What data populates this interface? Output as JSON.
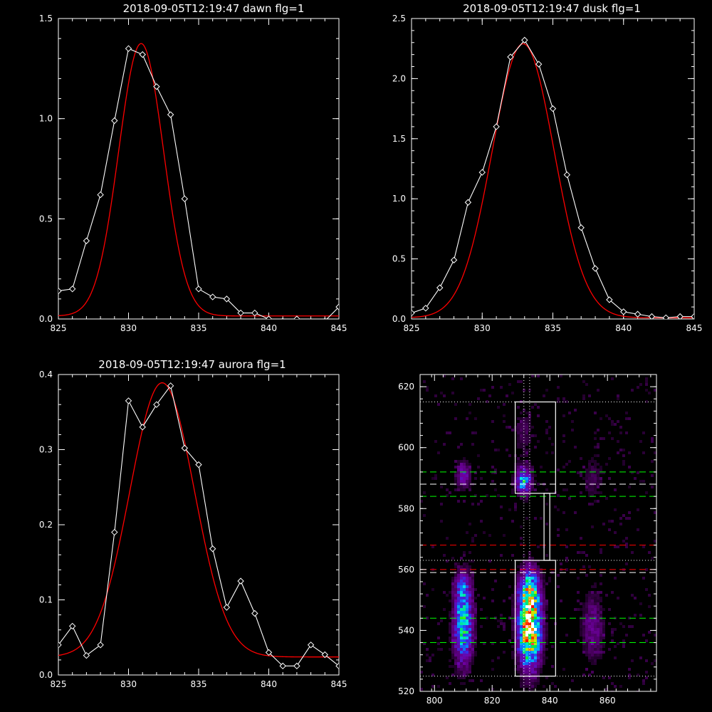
{
  "chart_data": [
    {
      "type": "line",
      "title": "2018-09-05T12:19:47 dawn flg=1",
      "xlim": [
        825,
        845
      ],
      "ylim": [
        0,
        1.5
      ],
      "xticks": [
        "825",
        "830",
        "835",
        "840",
        "845"
      ],
      "yticks": [
        "0.0",
        "0.5",
        "1.0",
        "1.5"
      ],
      "series": [
        {
          "color": "#ffffff",
          "marker": "diamond",
          "x": [
            825,
            826,
            827,
            828,
            829,
            830,
            831,
            832,
            833,
            834,
            835,
            836,
            837,
            838,
            839,
            840,
            841,
            842,
            843,
            844,
            845
          ],
          "y": [
            0.14,
            0.15,
            0.39,
            0.62,
            0.99,
            1.35,
            1.32,
            1.16,
            1.02,
            0.6,
            0.15,
            0.11,
            0.1,
            0.03,
            0.03,
            0.0,
            -0.01,
            0.0,
            -0.02,
            -0.01,
            0.06
          ]
        },
        {
          "color": "#ff0000",
          "fit": "gaussian",
          "amplitude": 1.36,
          "center": 830.9,
          "sigma": 1.6,
          "offset": 0.015
        }
      ]
    },
    {
      "type": "line",
      "title": "2018-09-05T12:19:47 dusk flg=1",
      "xlim": [
        825,
        845
      ],
      "ylim": [
        0,
        2.5
      ],
      "xticks": [
        "825",
        "830",
        "835",
        "840",
        "845"
      ],
      "yticks": [
        "0.0",
        "0.5",
        "1.0",
        "1.5",
        "2.0",
        "2.5"
      ],
      "series": [
        {
          "color": "#ffffff",
          "marker": "diamond",
          "x": [
            825,
            826,
            827,
            828,
            829,
            830,
            831,
            832,
            833,
            834,
            835,
            836,
            837,
            838,
            839,
            840,
            841,
            842,
            843,
            844,
            845
          ],
          "y": [
            0.05,
            0.09,
            0.26,
            0.49,
            0.97,
            1.22,
            1.6,
            2.18,
            2.32,
            2.12,
            1.75,
            1.2,
            0.76,
            0.42,
            0.16,
            0.06,
            0.04,
            0.02,
            0.01,
            0.02,
            0.02
          ]
        },
        {
          "color": "#ff0000",
          "fit": "gaussian",
          "amplitude": 2.28,
          "center": 832.9,
          "sigma": 2.2,
          "offset": 0.01
        }
      ]
    },
    {
      "type": "line",
      "title": "2018-09-05T12:19:47 aurora flg=1",
      "xlim": [
        825,
        845
      ],
      "ylim": [
        0,
        0.4
      ],
      "xticks": [
        "825",
        "830",
        "835",
        "840",
        "845"
      ],
      "yticks": [
        "0.0",
        "0.1",
        "0.2",
        "0.3",
        "0.4"
      ],
      "series": [
        {
          "color": "#ffffff",
          "marker": "diamond",
          "x": [
            825,
            826,
            827,
            828,
            829,
            830,
            831,
            832,
            833,
            834,
            835,
            836,
            837,
            838,
            839,
            840,
            841,
            842,
            843,
            844,
            845
          ],
          "y": [
            0.04,
            0.065,
            0.026,
            0.04,
            0.19,
            0.365,
            0.33,
            0.36,
            0.385,
            0.302,
            0.28,
            0.168,
            0.09,
            0.125,
            0.082,
            0.03,
            0.012,
            0.012,
            0.04,
            0.027,
            0.012
          ]
        },
        {
          "color": "#ff0000",
          "fit": "gaussian",
          "amplitude": 0.365,
          "center": 832.4,
          "sigma": 2.3,
          "offset": 0.024
        }
      ]
    },
    {
      "type": "heatmap",
      "title": "",
      "xlim": [
        795,
        877
      ],
      "ylim": [
        520,
        624
      ],
      "xticks": [
        "800",
        "820",
        "840",
        "860"
      ],
      "yticks": [
        "520",
        "540",
        "560",
        "580",
        "600",
        "620"
      ],
      "blobs": [
        {
          "x": 833,
          "y": 540,
          "sx": 2.6,
          "sy": 8,
          "amp": 1.0
        },
        {
          "x": 833,
          "y": 553,
          "sx": 2.4,
          "sy": 5,
          "amp": 0.55
        },
        {
          "x": 810,
          "y": 541,
          "sx": 2.2,
          "sy": 8,
          "amp": 0.62
        },
        {
          "x": 810,
          "y": 554,
          "sx": 2.0,
          "sy": 4,
          "amp": 0.3
        },
        {
          "x": 831,
          "y": 589,
          "sx": 1.8,
          "sy": 3,
          "amp": 0.55
        },
        {
          "x": 810,
          "y": 591,
          "sx": 1.6,
          "sy": 3,
          "amp": 0.28
        },
        {
          "x": 855,
          "y": 541,
          "sx": 2.5,
          "sy": 7,
          "amp": 0.22
        },
        {
          "x": 855,
          "y": 590,
          "sx": 2.5,
          "sy": 5,
          "amp": 0.1
        },
        {
          "x": 831,
          "y": 605,
          "sx": 2.5,
          "sy": 6,
          "amp": 0.1
        }
      ],
      "boxes": [
        {
          "x0": 828,
          "x1": 842,
          "y0": 525,
          "y1": 563
        },
        {
          "x0": 828,
          "x1": 842,
          "y0": 585,
          "y1": 615
        },
        {
          "x0": 838,
          "x1": 840,
          "y0": 563,
          "y1": 585
        }
      ],
      "hlines": [
        {
          "y": 615,
          "color": "#ffffff",
          "style": "dotted"
        },
        {
          "y": 525,
          "color": "#ffffff",
          "style": "dotted"
        },
        {
          "y": 563,
          "color": "#ffffff",
          "style": "dotted"
        },
        {
          "y": 592,
          "color": "#00ff00",
          "style": "dashed"
        },
        {
          "y": 584,
          "color": "#00ff00",
          "style": "dashed"
        },
        {
          "y": 544,
          "color": "#00ff00",
          "style": "dashed"
        },
        {
          "y": 536,
          "color": "#00ff00",
          "style": "dashed"
        },
        {
          "y": 588,
          "color": "#ffffff",
          "style": "dashed"
        },
        {
          "y": 559,
          "color": "#ffffff",
          "style": "dashed"
        },
        {
          "y": 568,
          "color": "#ff0000",
          "style": "dashed"
        },
        {
          "y": 560,
          "color": "#ff0000",
          "style": "dashed"
        }
      ],
      "vlines": [
        {
          "x": 831,
          "color": "#ffffff",
          "style": "dotted"
        },
        {
          "x": 833,
          "color": "#ffffff",
          "style": "dotted"
        }
      ]
    }
  ]
}
